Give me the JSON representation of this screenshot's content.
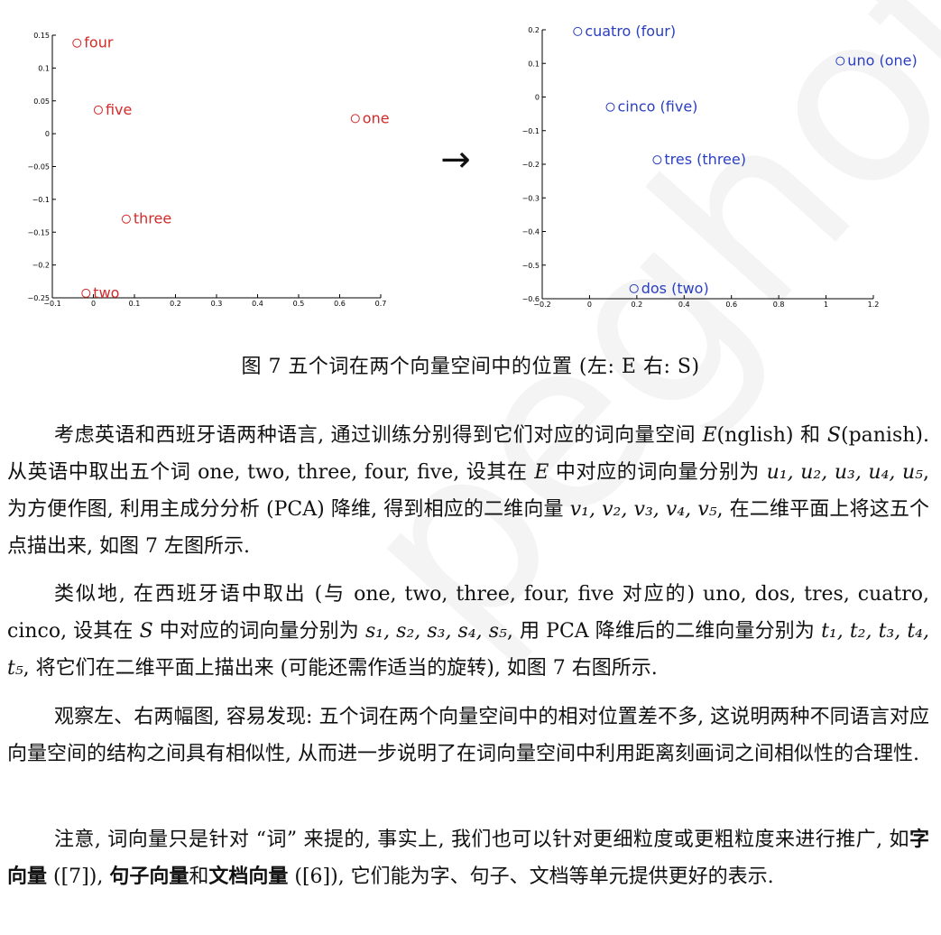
{
  "figure": {
    "arrow": "→",
    "caption": "图 7  五个词在两个向量空间中的位置 (左: E  右: S)"
  },
  "chart_data": [
    {
      "type": "scatter",
      "title": "",
      "xlabel": "",
      "ylabel": "",
      "xlim": [
        -0.1,
        0.7
      ],
      "ylim": [
        -0.25,
        0.15
      ],
      "xticks": [
        -0.1,
        0,
        0.1,
        0.2,
        0.3,
        0.4,
        0.5,
        0.6,
        0.7
      ],
      "yticks": [
        0.15,
        0.1,
        0.05,
        0,
        -0.05,
        -0.1,
        -0.15,
        -0.2,
        -0.25
      ],
      "xtick_labels": [
        "−0.1",
        "0",
        "0.1",
        "0.2",
        "0.3",
        "0.4",
        "0.5",
        "0.6",
        "0.7"
      ],
      "ytick_labels": [
        "0.15",
        "0.1",
        "0.05",
        "0",
        "−0.05",
        "−0.1",
        "−0.15",
        "−0.2",
        "−0.25"
      ],
      "color": "#d42a2a",
      "points": [
        {
          "label": "four",
          "x": -0.04,
          "y": 0.138
        },
        {
          "label": "five",
          "x": 0.012,
          "y": 0.036
        },
        {
          "label": "one",
          "x": 0.638,
          "y": 0.023
        },
        {
          "label": "three",
          "x": 0.08,
          "y": -0.13
        },
        {
          "label": "two",
          "x": -0.018,
          "y": -0.243
        }
      ]
    },
    {
      "type": "scatter",
      "title": "",
      "xlabel": "",
      "ylabel": "",
      "xlim": [
        -0.2,
        1.2
      ],
      "ylim": [
        -0.6,
        0.2
      ],
      "xticks": [
        -0.2,
        0,
        0.2,
        0.4,
        0.6,
        0.8,
        1,
        1.2
      ],
      "yticks": [
        0.2,
        0.1,
        0,
        -0.1,
        -0.2,
        -0.3,
        -0.4,
        -0.5,
        -0.6
      ],
      "xtick_labels": [
        "−0.2",
        "0",
        "0.2",
        "0.4",
        "0.6",
        "0.8",
        "1",
        "1.2"
      ],
      "ytick_labels": [
        "0.2",
        "0.1",
        "0",
        "−0.1",
        "−0.2",
        "−0.3",
        "−0.4",
        "−0.5",
        "−0.6"
      ],
      "color": "#2a3fbf",
      "points": [
        {
          "label": "cuatro (four)",
          "x": -0.05,
          "y": 0.195
        },
        {
          "label": "uno (one)",
          "x": 1.06,
          "y": 0.107
        },
        {
          "label": "cinco (five)",
          "x": 0.088,
          "y": -0.03
        },
        {
          "label": "tres (three)",
          "x": 0.286,
          "y": -0.187
        },
        {
          "label": "dos (two)",
          "x": 0.188,
          "y": -0.57
        }
      ]
    }
  ],
  "paragraphs": {
    "p1": {
      "a": "考虑英语和西班牙语两种语言, 通过训练分别得到它们对应的词向量空间 ",
      "E": "E",
      "b": "(nglish) 和 ",
      "S": "S",
      "c": "(panish).  从英语中取出五个词 one, two, three, four, five, 设其在 ",
      "E2": "E",
      "d": " 中对应的词向量分别为 ",
      "u": "u₁, u₂, u₃, u₄, u₅",
      "e": ", 为方便作图, 利用主成分分析 (PCA) 降维, 得到相应的二维向量 ",
      "v": "v₁, v₂, v₃, v₄, v₅",
      "f": ", 在二维平面上将这五个点描出来, 如图 7 左图所示."
    },
    "p2": {
      "a": "类似地, 在西班牙语中取出 (与 one, two, three, four, five 对应的) uno, dos, tres, cuatro, cinco, 设其在 ",
      "S": "S",
      "b": " 中对应的词向量分别为 ",
      "s": "s₁, s₂, s₃, s₄, s₅",
      "c": ", 用 PCA 降维后的二维向量分别为 ",
      "t": "t₁, t₂, t₃, t₄, t₅",
      "d": ", 将它们在二维平面上描出来 (可能还需作适当的旋转), 如图 7 右图所示."
    },
    "p3": "观察左、右两幅图, 容易发现: 五个词在两个向量空间中的相对位置差不多, 这说明两种不同语言对应向量空间的结构之间具有相似性, 从而进一步说明了在词向量空间中利用距离刻画词之间相似性的合理性.",
    "p4": {
      "a": "注意, 词向量只是针对 “词” 来提的, 事实上, 我们也可以针对更细粒度或更粗粒度来进行推广, 如",
      "b1": "字向量",
      "c": " ([7]), ",
      "b2": "句子向量",
      "d": "和",
      "b3": "文档向量",
      "e": " ([6]), 它们能为字、句子、文档等单元提供更好的表示."
    }
  },
  "watermark": "peghoty"
}
